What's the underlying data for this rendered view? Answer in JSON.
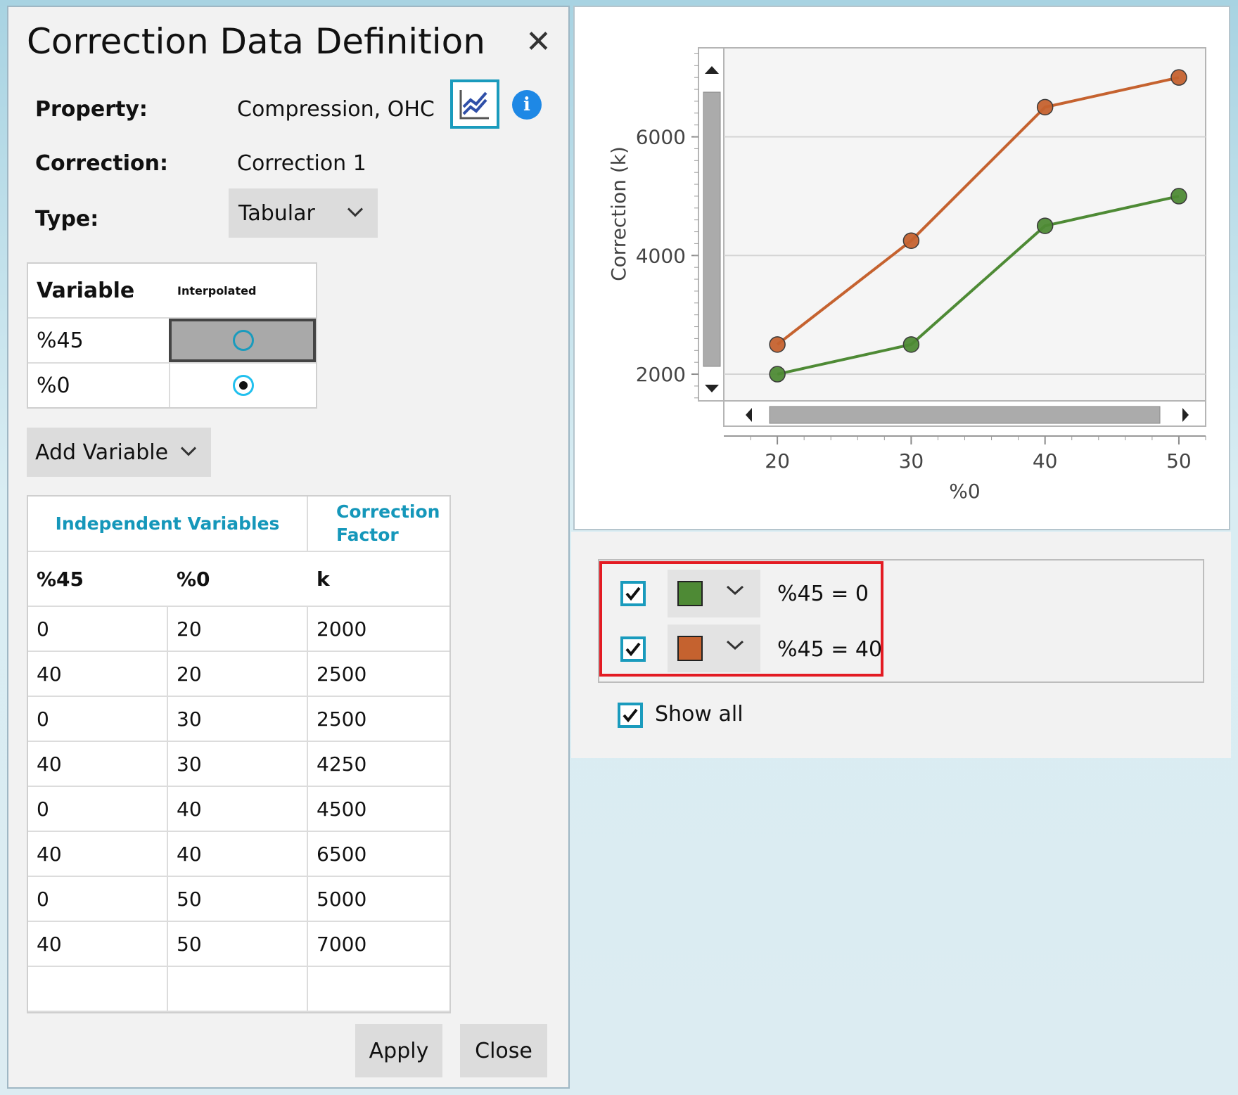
{
  "dialog": {
    "title": "Correction Data Definition",
    "close_glyph": "✕",
    "property_label": "Property:",
    "property_value": "Compression, OHC",
    "correction_label": "Correction:",
    "correction_value": "Correction 1",
    "type_label": "Type:",
    "type_value": "Tabular",
    "apply_label": "Apply",
    "close_label": "Close",
    "info_glyph": "i"
  },
  "variables_table": {
    "headers": [
      "Variable",
      "Interpolated"
    ],
    "rows": [
      {
        "name": "%45",
        "interpolated": false
      },
      {
        "name": "%0",
        "interpolated": true
      }
    ]
  },
  "add_variable_label": "Add Variable",
  "data_table": {
    "group_header_1": "Independent Variables",
    "group_header_2_line1": "Correction",
    "group_header_2_line2": "Factor",
    "columns": [
      "%45",
      "%0",
      "k"
    ],
    "rows": [
      [
        "0",
        "20",
        "2000"
      ],
      [
        "40",
        "20",
        "2500"
      ],
      [
        "0",
        "30",
        "2500"
      ],
      [
        "40",
        "30",
        "4250"
      ],
      [
        "0",
        "40",
        "4500"
      ],
      [
        "40",
        "40",
        "6500"
      ],
      [
        "0",
        "50",
        "5000"
      ],
      [
        "40",
        "50",
        "7000"
      ],
      [
        "",
        "",
        ""
      ]
    ]
  },
  "legend": {
    "items": [
      {
        "label": "%45  =  0",
        "color": "#4e8a35",
        "checked": true
      },
      {
        "label": "%45  =  40",
        "color": "#c5622f",
        "checked": true
      }
    ],
    "show_all_label": "Show all"
  },
  "chart_data": {
    "type": "line",
    "xlabel": "%0",
    "ylabel": "Correction (k)",
    "x": [
      20,
      30,
      40,
      50
    ],
    "x_ticks": [
      "20",
      "30",
      "40",
      "50"
    ],
    "y_ticks": [
      "2000",
      "4000",
      "6000"
    ],
    "xlim": [
      16,
      52
    ],
    "ylim": [
      1550,
      7500
    ],
    "grid": true,
    "series": [
      {
        "values": [
          2000,
          2500,
          4500,
          5000
        ],
        "color": "#4e8a35"
      },
      {
        "values": [
          2500,
          4250,
          6500,
          7000
        ],
        "color": "#c5622f"
      }
    ]
  }
}
